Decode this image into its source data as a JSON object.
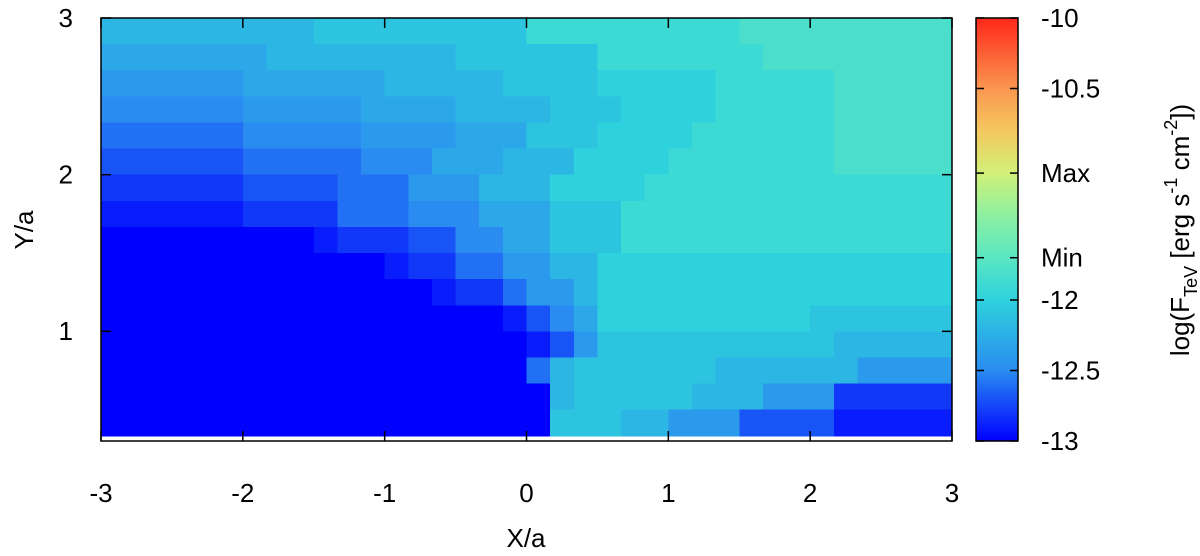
{
  "chart_data": {
    "type": "heatmap",
    "xlabel": "X/a",
    "ylabel": "Y/a",
    "xlim": [
      -3,
      3
    ],
    "ylim": [
      0.3,
      3
    ],
    "xticks": [
      -3,
      -2,
      -1,
      0,
      1,
      2,
      3
    ],
    "yticks": [
      1,
      2,
      3
    ],
    "cell_xrange": [
      -3,
      3
    ],
    "cell_yrange": [
      0.333,
      3
    ],
    "z": [
      [
        -12.2,
        -12.2,
        -12.2,
        -12.2,
        -12.2,
        -12.2,
        -12.2,
        -12.2,
        -12.2,
        -12.1,
        -12.1,
        -12.1,
        -12.1,
        -12.1,
        -12.1,
        -12.1,
        -12.1,
        -12.1,
        -11.9,
        -11.9,
        -11.9,
        -11.9,
        -11.9,
        -11.9,
        -11.9,
        -11.9,
        -11.9,
        -11.8,
        -11.8,
        -11.8,
        -11.8,
        -11.8,
        -11.8,
        -11.8,
        -11.8,
        -11.8
      ],
      [
        -12.3,
        -12.3,
        -12.3,
        -12.3,
        -12.3,
        -12.3,
        -12.3,
        -12.2,
        -12.2,
        -12.2,
        -12.2,
        -12.2,
        -12.2,
        -12.2,
        -12.2,
        -12.1,
        -12.1,
        -12.1,
        -12.1,
        -12.1,
        -12.1,
        -11.9,
        -11.9,
        -11.9,
        -11.9,
        -11.9,
        -11.9,
        -11.9,
        -11.8,
        -11.8,
        -11.8,
        -11.8,
        -11.8,
        -11.8,
        -11.8,
        -11.8
      ],
      [
        -12.4,
        -12.4,
        -12.4,
        -12.4,
        -12.4,
        -12.4,
        -12.3,
        -12.3,
        -12.3,
        -12.3,
        -12.3,
        -12.3,
        -12.2,
        -12.2,
        -12.2,
        -12.2,
        -12.2,
        -12.1,
        -12.1,
        -12.1,
        -12.1,
        -12,
        -12,
        -12,
        -12,
        -12,
        -11.9,
        -11.9,
        -11.9,
        -11.9,
        -11.9,
        -11.8,
        -11.8,
        -11.8,
        -11.8,
        -11.8
      ],
      [
        -12.5,
        -12.5,
        -12.5,
        -12.5,
        -12.5,
        -12.5,
        -12.4,
        -12.4,
        -12.4,
        -12.4,
        -12.4,
        -12.3,
        -12.3,
        -12.3,
        -12.3,
        -12.2,
        -12.2,
        -12.2,
        -12.2,
        -12.1,
        -12.1,
        -12.1,
        -12,
        -12,
        -12,
        -12,
        -11.9,
        -11.9,
        -11.9,
        -11.9,
        -11.9,
        -11.8,
        -11.8,
        -11.8,
        -11.8,
        -11.8
      ],
      [
        -12.6,
        -12.6,
        -12.6,
        -12.6,
        -12.6,
        -12.6,
        -12.5,
        -12.5,
        -12.5,
        -12.5,
        -12.5,
        -12.4,
        -12.4,
        -12.4,
        -12.4,
        -12.3,
        -12.3,
        -12.3,
        -12.1,
        -12.1,
        -12.1,
        -12,
        -12,
        -12,
        -12,
        -11.9,
        -11.9,
        -11.9,
        -11.9,
        -11.9,
        -11.9,
        -11.8,
        -11.8,
        -11.8,
        -11.8,
        -11.8
      ],
      [
        -12.7,
        -12.7,
        -12.7,
        -12.7,
        -12.7,
        -12.7,
        -12.6,
        -12.6,
        -12.6,
        -12.6,
        -12.6,
        -12.5,
        -12.5,
        -12.5,
        -12.3,
        -12.3,
        -12.3,
        -12.2,
        -12.2,
        -12.2,
        -12,
        -12,
        -12,
        -12,
        -11.9,
        -11.9,
        -11.9,
        -11.9,
        -11.9,
        -11.9,
        -11.9,
        -11.8,
        -11.8,
        -11.8,
        -11.8,
        -11.8
      ],
      [
        -12.8,
        -12.8,
        -12.8,
        -12.8,
        -12.8,
        -12.8,
        -12.7,
        -12.7,
        -12.7,
        -12.7,
        -12.6,
        -12.6,
        -12.6,
        -12.4,
        -12.4,
        -12.4,
        -12.2,
        -12.2,
        -12.2,
        -12,
        -12,
        -12,
        -12,
        -11.9,
        -11.9,
        -11.9,
        -11.9,
        -11.9,
        -11.9,
        -11.9,
        -11.9,
        -11.9,
        -11.9,
        -11.9,
        -11.9,
        -11.9
      ],
      [
        -12.9,
        -12.9,
        -12.9,
        -12.9,
        -12.9,
        -12.9,
        -12.8,
        -12.8,
        -12.8,
        -12.8,
        -12.6,
        -12.6,
        -12.6,
        -12.5,
        -12.5,
        -12.5,
        -12.3,
        -12.3,
        -12.3,
        -12.1,
        -12.1,
        -12.1,
        -11.9,
        -11.9,
        -11.9,
        -11.9,
        -11.9,
        -11.9,
        -11.9,
        -11.9,
        -11.9,
        -11.9,
        -11.9,
        -11.9,
        -11.9,
        -11.9
      ],
      [
        -13,
        -13,
        -13,
        -13,
        -13,
        -13,
        -13,
        -13,
        -13,
        -12.9,
        -12.8,
        -12.8,
        -12.8,
        -12.7,
        -12.7,
        -12.5,
        -12.5,
        -12.3,
        -12.3,
        -12.1,
        -12.1,
        -12.1,
        -11.9,
        -11.9,
        -11.9,
        -11.9,
        -11.9,
        -11.9,
        -11.9,
        -11.9,
        -11.9,
        -11.9,
        -11.9,
        -11.9,
        -11.9,
        -11.9
      ],
      [
        -13,
        -13,
        -13,
        -13,
        -13,
        -13,
        -13,
        -13,
        -13,
        -13,
        -13,
        -13,
        -12.9,
        -12.8,
        -12.8,
        -12.6,
        -12.6,
        -12.4,
        -12.4,
        -12.2,
        -12.2,
        -12,
        -12,
        -12,
        -12,
        -12,
        -12,
        -12,
        -12,
        -12,
        -12,
        -12,
        -12,
        -12,
        -12,
        -12
      ],
      [
        -13,
        -13,
        -13,
        -13,
        -13,
        -13,
        -13,
        -13,
        -13,
        -13,
        -13,
        -13,
        -13,
        -13,
        -12.9,
        -12.8,
        -12.8,
        -12.6,
        -12.4,
        -12.4,
        -12.2,
        -12,
        -12,
        -12,
        -12,
        -12,
        -12,
        -12,
        -12,
        -12,
        -12,
        -12,
        -12,
        -12,
        -12,
        -12
      ],
      [
        -13,
        -13,
        -13,
        -13,
        -13,
        -13,
        -13,
        -13,
        -13,
        -13,
        -13,
        -13,
        -13,
        -13,
        -13,
        -13,
        -13,
        -12.9,
        -12.7,
        -12.5,
        -12.3,
        -12,
        -12,
        -12,
        -12,
        -12,
        -12,
        -12,
        -12,
        -12,
        -12.1,
        -12.1,
        -12.1,
        -12.1,
        -12.1,
        -12.1
      ],
      [
        -13,
        -13,
        -13,
        -13,
        -13,
        -13,
        -13,
        -13,
        -13,
        -13,
        -13,
        -13,
        -13,
        -13,
        -13,
        -13,
        -13,
        -13,
        -12.9,
        -12.7,
        -12.4,
        -12.1,
        -12.1,
        -12.1,
        -12.1,
        -12.1,
        -12.1,
        -12.1,
        -12.1,
        -12.1,
        -12.1,
        -12.2,
        -12.2,
        -12.2,
        -12.2,
        -12.2
      ],
      [
        -13,
        -13,
        -13,
        -13,
        -13,
        -13,
        -13,
        -13,
        -13,
        -13,
        -13,
        -13,
        -13,
        -13,
        -13,
        -13,
        -13,
        -13,
        -12.6,
        -12.2,
        -12.1,
        -12.1,
        -12.1,
        -12.1,
        -12.1,
        -12.1,
        -12.2,
        -12.2,
        -12.2,
        -12.2,
        -12.2,
        -12.2,
        -12.4,
        -12.4,
        -12.4,
        -12.4
      ],
      [
        -13,
        -13,
        -13,
        -13,
        -13,
        -13,
        -13,
        -13,
        -13,
        -13,
        -13,
        -13,
        -13,
        -13,
        -13,
        -13,
        -13,
        -13,
        -13,
        -12.2,
        -12.1,
        -12.1,
        -12.1,
        -12.1,
        -12.1,
        -12.2,
        -12.2,
        -12.2,
        -12.4,
        -12.4,
        -12.4,
        -12.8,
        -12.8,
        -12.8,
        -12.8,
        -12.8
      ],
      [
        -13,
        -13,
        -13,
        -13,
        -13,
        -13,
        -13,
        -13,
        -13,
        -13,
        -13,
        -13,
        -13,
        -13,
        -13,
        -13,
        -13,
        -13,
        -13,
        -12.1,
        -12.1,
        -12.1,
        -12.2,
        -12.2,
        -12.4,
        -12.4,
        -12.4,
        -12.7,
        -12.7,
        -12.7,
        -12.7,
        -12.9,
        -12.9,
        -12.9,
        -12.9,
        -12.9
      ]
    ],
    "colormap": [
      {
        "value": -13,
        "color": "#0000ff"
      },
      {
        "value": -12.5,
        "color": "#2a8cf0"
      },
      {
        "value": -12,
        "color": "#2ed2dc"
      },
      {
        "value": -11.7,
        "color": "#5ae6c3"
      },
      {
        "value": -11.4,
        "color": "#8cf0a0"
      },
      {
        "value": -11.1,
        "color": "#d2f078"
      },
      {
        "value": -10.8,
        "color": "#f5c85f"
      },
      {
        "value": -10.5,
        "color": "#fa9650"
      },
      {
        "value": -10,
        "color": "#ff2819"
      }
    ],
    "colorbar": {
      "lim": [
        -13,
        -10
      ],
      "ticks": [
        -10,
        -10.5,
        {
          "value": -11.1,
          "label": "Max"
        },
        {
          "value": -11.7,
          "label": "Min"
        },
        -12,
        -12.5,
        -13
      ],
      "label_parts": [
        {
          "text": "log(F"
        },
        {
          "text": "TeV",
          "shift": "sub"
        },
        {
          "text": " [erg s"
        },
        {
          "text": "-1",
          "shift": "super"
        },
        {
          "text": " cm"
        },
        {
          "text": "-2",
          "shift": "super"
        },
        {
          "text": "])"
        }
      ]
    }
  }
}
